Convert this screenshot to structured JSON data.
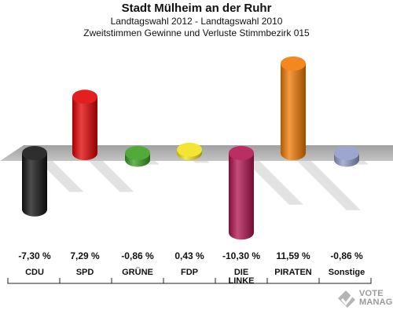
{
  "header": {
    "title": "Stadt Mülheim an der Ruhr",
    "subtitle1": "Landtagswahl 2012 - Landtagswahl 2010",
    "subtitle2": "Zweitstimmen Gewinne und Verluste Stimmbezirk 015"
  },
  "chart_data": {
    "type": "bar",
    "categories": [
      "CDU",
      "SPD",
      "GRÜNE",
      "FDP",
      "DIE LINKE",
      "PIRATEN",
      "Sonstige"
    ],
    "values": [
      -7.3,
      7.29,
      -0.86,
      0.43,
      -10.3,
      11.59,
      -0.86
    ],
    "value_labels": [
      "-7,30 %",
      "7,29 %",
      "-0,86 %",
      "0,43 %",
      "-10,30 %",
      "11,59 %",
      "-0,86 %"
    ],
    "colors": [
      "#111111",
      "#e00000",
      "#3a9e1e",
      "#f2e21a",
      "#b0124e",
      "#f07800",
      "#8e9ac8"
    ],
    "ylim": [
      -12,
      12
    ],
    "grid": false,
    "style": "3d-cylinder"
  },
  "logo": {
    "line1": "VOTE",
    "line2": "MANAGER",
    "icon": "ballot-check-icon"
  }
}
